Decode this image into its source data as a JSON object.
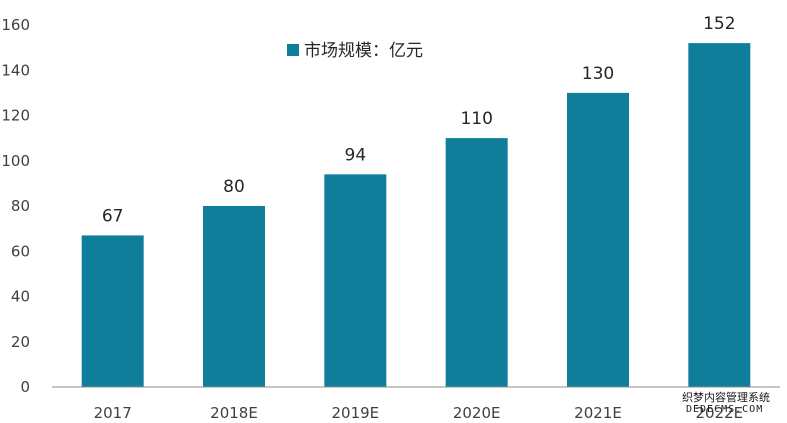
{
  "chart_data": {
    "type": "bar",
    "title": "",
    "xlabel": "",
    "ylabel": "",
    "legend": {
      "label": "市场规模：亿元",
      "position": "top-center"
    },
    "categories": [
      "2017",
      "2018E",
      "2019E",
      "2020E",
      "2021E",
      "2022E"
    ],
    "series": [
      {
        "name": "市场规模：亿元",
        "values": [
          67,
          80,
          94,
          110,
          130,
          152
        ],
        "color": "#0e7e9b"
      }
    ],
    "ylim": [
      0,
      160
    ],
    "yticks": [
      0,
      20,
      40,
      60,
      80,
      100,
      120,
      140,
      160
    ],
    "grid": false
  },
  "watermark": {
    "line1": "织梦内容管理系统",
    "line2": "DEDECMS.COM"
  }
}
